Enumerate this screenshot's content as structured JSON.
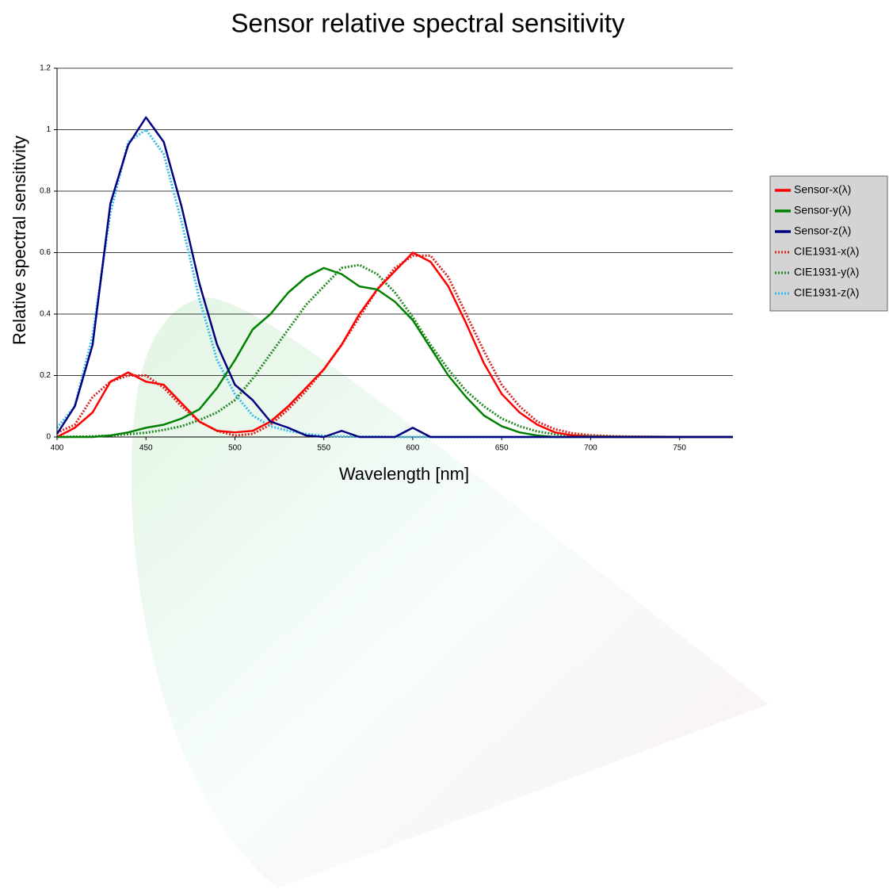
{
  "chart_data": {
    "type": "line",
    "title": "Sensor relative spectral sensitivity",
    "x_label": "Wavelength [nm]",
    "y_label": "Relative spectral sensitivity",
    "x": [
      400,
      410,
      420,
      430,
      440,
      450,
      460,
      470,
      480,
      490,
      500,
      510,
      520,
      530,
      540,
      550,
      560,
      570,
      580,
      590,
      600,
      610,
      620,
      630,
      640,
      650,
      660,
      670,
      680,
      690,
      700,
      710,
      720,
      730,
      740,
      750,
      760,
      770,
      780
    ],
    "xlim": [
      400,
      780
    ],
    "xticks": [
      400,
      450,
      500,
      550,
      600,
      650,
      700,
      750
    ],
    "ylim": [
      0,
      1.2
    ],
    "yticks": [
      0,
      0.2,
      0.4,
      0.6,
      0.8,
      1,
      1.2
    ],
    "grid": true,
    "legend": "right",
    "series": [
      {
        "name": "Sensor-x(λ)",
        "color": "#ff0000",
        "style": "solid",
        "values": [
          0,
          0.03,
          0.08,
          0.18,
          0.21,
          0.18,
          0.17,
          0.11,
          0.05,
          0.02,
          0.015,
          0.02,
          0.05,
          0.1,
          0.16,
          0.22,
          0.3,
          0.4,
          0.48,
          0.54,
          0.6,
          0.57,
          0.49,
          0.37,
          0.24,
          0.14,
          0.08,
          0.04,
          0.015,
          0.005,
          0,
          0,
          0,
          0,
          0,
          0,
          0,
          0,
          0
        ]
      },
      {
        "name": "Sensor-y(λ)",
        "color": "#008000",
        "style": "solid",
        "values": [
          0,
          0,
          0,
          0.005,
          0.015,
          0.03,
          0.04,
          0.06,
          0.09,
          0.16,
          0.25,
          0.35,
          0.4,
          0.47,
          0.52,
          0.55,
          0.53,
          0.49,
          0.48,
          0.44,
          0.38,
          0.29,
          0.2,
          0.13,
          0.07,
          0.035,
          0.015,
          0.005,
          0,
          0,
          0,
          0,
          0,
          0,
          0,
          0,
          0,
          0,
          0
        ]
      },
      {
        "name": "Sensor-z(λ)",
        "color": "#000080",
        "style": "solid",
        "values": [
          0.01,
          0.1,
          0.3,
          0.76,
          0.95,
          1.04,
          0.96,
          0.75,
          0.5,
          0.3,
          0.17,
          0.12,
          0.05,
          0.03,
          0.005,
          0,
          0.02,
          0,
          0,
          0,
          0.03,
          0,
          0,
          0,
          0,
          0,
          0,
          0,
          0,
          0,
          0,
          0,
          0,
          0,
          0,
          0,
          0,
          0,
          0
        ]
      },
      {
        "name": "CIE1931-x(λ)",
        "color": "#dd2222",
        "style": "dotted",
        "values": [
          0.014,
          0.04,
          0.13,
          0.18,
          0.2,
          0.2,
          0.16,
          0.1,
          0.05,
          0.02,
          0.005,
          0.01,
          0.04,
          0.09,
          0.15,
          0.22,
          0.3,
          0.39,
          0.48,
          0.55,
          0.59,
          0.59,
          0.52,
          0.4,
          0.28,
          0.17,
          0.1,
          0.05,
          0.025,
          0.012,
          0.006,
          0.003,
          0.0015,
          0.001,
          0.0005,
          0,
          0,
          0,
          0
        ]
      },
      {
        "name": "CIE1931-y(λ)",
        "color": "#228822",
        "style": "dotted",
        "values": [
          0,
          0.001,
          0.002,
          0.005,
          0.009,
          0.014,
          0.023,
          0.035,
          0.055,
          0.08,
          0.12,
          0.19,
          0.27,
          0.35,
          0.43,
          0.49,
          0.55,
          0.56,
          0.53,
          0.47,
          0.39,
          0.3,
          0.22,
          0.15,
          0.1,
          0.06,
          0.035,
          0.018,
          0.009,
          0.005,
          0.0025,
          0.0013,
          0.0006,
          0.0003,
          0.0002,
          0,
          0,
          0,
          0
        ]
      },
      {
        "name": "CIE1931-z(λ)",
        "color": "#33bbee",
        "style": "dotted",
        "values": [
          0.03,
          0.1,
          0.33,
          0.73,
          0.96,
          1,
          0.92,
          0.7,
          0.45,
          0.25,
          0.14,
          0.07,
          0.035,
          0.02,
          0.01,
          0.004,
          0.002,
          0.001,
          0.001,
          0,
          0,
          0,
          0,
          0,
          0,
          0,
          0,
          0,
          0,
          0,
          0,
          0,
          0,
          0,
          0,
          0,
          0,
          0,
          0
        ]
      }
    ]
  }
}
